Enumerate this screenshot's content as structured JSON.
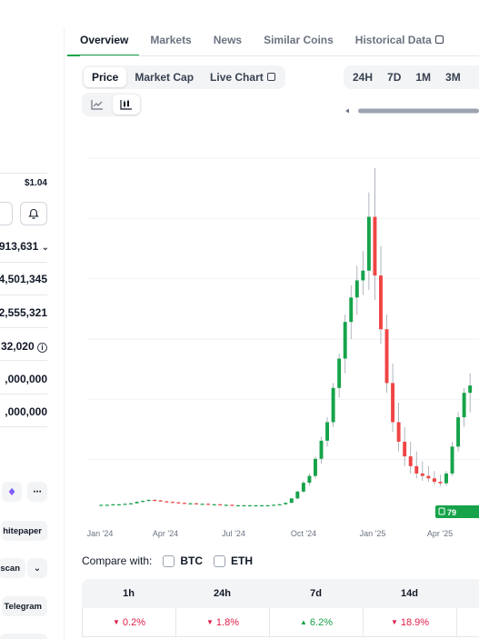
{
  "tabs": [
    {
      "label": "Overview",
      "active": true
    },
    {
      "label": "Markets",
      "active": false
    },
    {
      "label": "News",
      "active": false
    },
    {
      "label": "Similar Coins",
      "active": false
    },
    {
      "label": "Historical Data",
      "active": false,
      "external": true
    }
  ],
  "chart_type_options": [
    {
      "label": "Price",
      "selected": true
    },
    {
      "label": "Market Cap",
      "selected": false
    },
    {
      "label": "Live Chart",
      "selected": false,
      "external": true
    }
  ],
  "range_options": [
    "24H",
    "7D",
    "1M",
    "3M"
  ],
  "view_toggle": {
    "line_icon": "line-chart-icon",
    "candle_icon": "candlestick-chart-icon",
    "selected": "candlestick"
  },
  "sidebar": {
    "price_value": "$1.04",
    "market_cap_value": "913,631",
    "fdv_value": "4,501,345",
    "volume_value": "2,555,321",
    "circulating_value": "32,020",
    "total_supply_value": ",000,000",
    "max_supply_value": ",000,000",
    "whitepaper_label": "hitepaper",
    "explorer_label": "scan",
    "telegram_label": "Telegram"
  },
  "chart_data": {
    "type": "candlestick",
    "x_ticks": [
      "Jan '24",
      "Apr '24",
      "Jul '24",
      "Oct '24",
      "Jan '25",
      "Apr '25"
    ],
    "current_price_tag": "79",
    "grid": true,
    "candles": [
      [
        0.3,
        0.31,
        0.3,
        0.31
      ],
      [
        0.31,
        0.32,
        0.3,
        0.31
      ],
      [
        0.31,
        0.32,
        0.31,
        0.32
      ],
      [
        0.32,
        0.33,
        0.31,
        0.32
      ],
      [
        0.32,
        0.34,
        0.32,
        0.33
      ],
      [
        0.33,
        0.35,
        0.33,
        0.34
      ],
      [
        0.34,
        0.38,
        0.34,
        0.37
      ],
      [
        0.37,
        0.4,
        0.36,
        0.39
      ],
      [
        0.39,
        0.42,
        0.38,
        0.41
      ],
      [
        0.41,
        0.43,
        0.39,
        0.4
      ],
      [
        0.4,
        0.41,
        0.37,
        0.38
      ],
      [
        0.38,
        0.39,
        0.36,
        0.37
      ],
      [
        0.37,
        0.38,
        0.35,
        0.36
      ],
      [
        0.36,
        0.37,
        0.34,
        0.35
      ],
      [
        0.35,
        0.36,
        0.33,
        0.34
      ],
      [
        0.34,
        0.35,
        0.33,
        0.34
      ],
      [
        0.34,
        0.35,
        0.32,
        0.33
      ],
      [
        0.33,
        0.34,
        0.32,
        0.33
      ],
      [
        0.33,
        0.34,
        0.32,
        0.32
      ],
      [
        0.32,
        0.33,
        0.31,
        0.32
      ],
      [
        0.32,
        0.33,
        0.31,
        0.31
      ],
      [
        0.31,
        0.32,
        0.3,
        0.31
      ],
      [
        0.31,
        0.32,
        0.3,
        0.3
      ],
      [
        0.3,
        0.31,
        0.29,
        0.3
      ],
      [
        0.3,
        0.31,
        0.29,
        0.3
      ],
      [
        0.3,
        0.31,
        0.29,
        0.3
      ],
      [
        0.3,
        0.31,
        0.29,
        0.3
      ],
      [
        0.3,
        0.31,
        0.29,
        0.3
      ],
      [
        0.3,
        0.31,
        0.29,
        0.3
      ],
      [
        0.3,
        0.32,
        0.29,
        0.31
      ],
      [
        0.31,
        0.33,
        0.3,
        0.32
      ],
      [
        0.32,
        0.36,
        0.31,
        0.35
      ],
      [
        0.35,
        0.45,
        0.34,
        0.44
      ],
      [
        0.44,
        0.6,
        0.42,
        0.58
      ],
      [
        0.58,
        0.8,
        0.55,
        0.76
      ],
      [
        0.76,
        0.95,
        0.7,
        0.9
      ],
      [
        0.9,
        1.3,
        0.85,
        1.25
      ],
      [
        1.25,
        1.7,
        1.15,
        1.62
      ],
      [
        1.62,
        2.1,
        1.5,
        2.0
      ],
      [
        2.0,
        2.8,
        1.9,
        2.7
      ],
      [
        2.7,
        3.4,
        2.5,
        3.3
      ],
      [
        3.3,
        4.2,
        3.0,
        4.05
      ],
      [
        4.05,
        4.8,
        3.7,
        4.55
      ],
      [
        4.55,
        5.2,
        4.2,
        4.9
      ],
      [
        4.9,
        5.5,
        4.6,
        5.1
      ],
      [
        5.1,
        6.7,
        4.7,
        6.2
      ],
      [
        6.2,
        7.2,
        4.5,
        5.0
      ],
      [
        5.0,
        5.6,
        3.6,
        3.9
      ],
      [
        3.9,
        4.2,
        2.6,
        2.8
      ],
      [
        2.8,
        3.2,
        1.8,
        2.0
      ],
      [
        2.0,
        2.4,
        1.4,
        1.6
      ],
      [
        1.6,
        1.9,
        1.1,
        1.3
      ],
      [
        1.3,
        1.6,
        0.95,
        1.1
      ],
      [
        1.1,
        1.4,
        0.85,
        0.95
      ],
      [
        0.95,
        1.2,
        0.8,
        0.9
      ],
      [
        0.9,
        1.1,
        0.78,
        0.85
      ],
      [
        0.85,
        1.0,
        0.72,
        0.78
      ],
      [
        0.78,
        0.92,
        0.7,
        0.75
      ],
      [
        0.75,
        1.0,
        0.7,
        0.95
      ],
      [
        0.95,
        1.6,
        0.9,
        1.5
      ],
      [
        1.5,
        2.2,
        1.4,
        2.1
      ],
      [
        2.1,
        2.7,
        1.9,
        2.6
      ],
      [
        2.6,
        3.0,
        2.2,
        2.75
      ]
    ]
  },
  "compare": {
    "label": "Compare with:",
    "options": [
      {
        "label": "BTC",
        "checked": false
      },
      {
        "label": "ETH",
        "checked": false
      }
    ]
  },
  "perf_table": {
    "headers": [
      "1h",
      "24h",
      "7d",
      "14d"
    ],
    "values": [
      {
        "text": "0.2%",
        "direction": "down"
      },
      {
        "text": "1.8%",
        "direction": "down"
      },
      {
        "text": "6.2%",
        "direction": "up"
      },
      {
        "text": "18.9%",
        "direction": "down"
      }
    ]
  },
  "colors": {
    "up": "#16a34a",
    "down": "#ef4444",
    "accent": "#16a34a"
  }
}
